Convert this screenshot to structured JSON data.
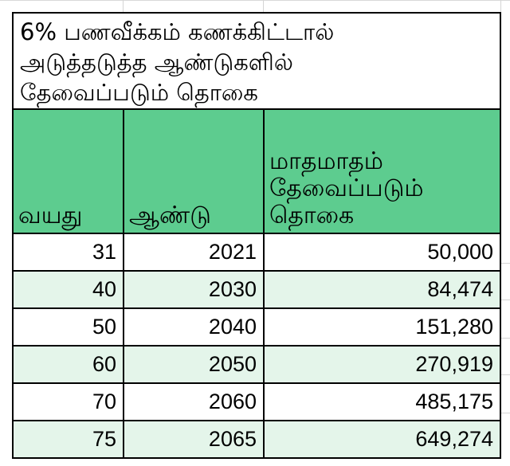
{
  "title_lines": [
    "6% பணவீக்கம் கணக்கிட்டால்",
    "அடுத்தடுத்த ஆண்டுகளில்",
    "தேவைப்படும் தொகை"
  ],
  "columns": {
    "age": "வயது",
    "year": "ஆண்டு",
    "amount_lines": [
      "மாதமாதம்",
      "தேவைப்படும்",
      "தொகை"
    ]
  },
  "rows": [
    {
      "age": "31",
      "year": "2021",
      "amount": "50,000"
    },
    {
      "age": "40",
      "year": "2030",
      "amount": "84,474"
    },
    {
      "age": "50",
      "year": "2040",
      "amount": "151,280"
    },
    {
      "age": "60",
      "year": "2050",
      "amount": "270,919"
    },
    {
      "age": "70",
      "year": "2060",
      "amount": "485,175"
    },
    {
      "age": "75",
      "year": "2065",
      "amount": "649,274"
    }
  ],
  "colors": {
    "header_bg": "#5dcc8f",
    "alt_row_bg": "#e4f5ea",
    "border": "#000000"
  }
}
